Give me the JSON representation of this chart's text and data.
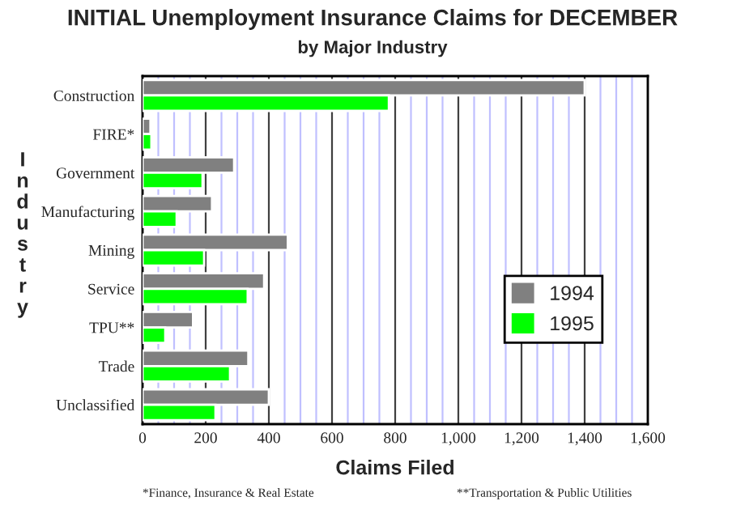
{
  "chart_data": {
    "type": "bar",
    "orientation": "horizontal",
    "title": "INITIAL Unemployment Insurance Claims for DECEMBER",
    "subtitle": "by Major Industry",
    "xlabel": "Claims Filed",
    "ylabel": "Industry",
    "categories": [
      "Construction",
      "FIRE*",
      "Government",
      "Manufacturing",
      "Mining",
      "Service",
      "TPU**",
      "Trade",
      "Unclassified"
    ],
    "series": [
      {
        "name": "1994",
        "color": "#808080",
        "values": [
          1400,
          25,
          290,
          220,
          460,
          385,
          160,
          335,
          400
        ]
      },
      {
        "name": "1995",
        "color": "#00ff00",
        "values": [
          780,
          28,
          190,
          108,
          195,
          333,
          72,
          277,
          231
        ]
      }
    ],
    "xlim": [
      0,
      1600
    ],
    "xticks": [
      0,
      {
        "value": 50,
        "label": null
      },
      {
        "value": 100,
        "label": null
      },
      {
        "value": 150,
        "label": null
      },
      200,
      {
        "value": 250,
        "label": null
      },
      {
        "value": 300,
        "label": null
      },
      {
        "value": 350,
        "label": null
      },
      400,
      {
        "value": 450,
        "label": null
      },
      {
        "value": 500,
        "label": null
      },
      {
        "value": 550,
        "label": null
      },
      600,
      {
        "value": 650,
        "label": null
      },
      {
        "value": 700,
        "label": null
      },
      {
        "value": 750,
        "label": null
      },
      800,
      {
        "value": 850,
        "label": null
      },
      {
        "value": 900,
        "label": null
      },
      {
        "value": 950,
        "label": null
      },
      {
        "value": 1000,
        "label": "1,000"
      },
      {
        "value": 1050,
        "label": null
      },
      {
        "value": 1100,
        "label": null
      },
      {
        "value": 1150,
        "label": null
      },
      {
        "value": 1200,
        "label": "1,200"
      },
      {
        "value": 1250,
        "label": null
      },
      {
        "value": 1300,
        "label": null
      },
      {
        "value": 1350,
        "label": null
      },
      {
        "value": 1400,
        "label": "1,400"
      },
      {
        "value": 1450,
        "label": null
      },
      {
        "value": 1500,
        "label": null
      },
      {
        "value": 1550,
        "label": null
      },
      {
        "value": 1600,
        "label": "1,600"
      }
    ],
    "grid": "x",
    "legend": "right",
    "annotations": [
      "*Finance, Insurance & Real Estate",
      "**Transportation & Public Utilities"
    ]
  }
}
